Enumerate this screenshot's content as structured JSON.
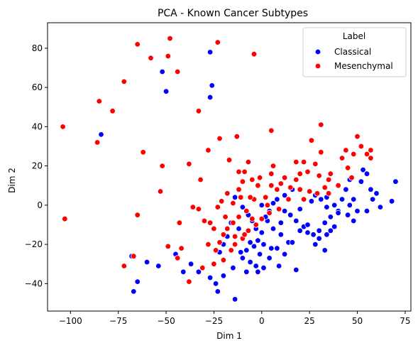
{
  "chart_data": {
    "type": "scatter",
    "title": "PCA - Known Cancer Subtypes",
    "xlabel": "Dim 1",
    "ylabel": "Dim 2",
    "xlim": [
      -112,
      78
    ],
    "ylim": [
      -54,
      93
    ],
    "xticks": [
      -100,
      -75,
      -50,
      -25,
      0,
      25,
      50,
      75
    ],
    "yticks": [
      -40,
      -20,
      0,
      20,
      40,
      60,
      80
    ],
    "grid": false,
    "legend": {
      "title": "Label",
      "placement": "top-right"
    },
    "series": [
      {
        "name": "Classical",
        "color": "#0000ff",
        "points": [
          [
            -84,
            36
          ],
          [
            -52,
            68
          ],
          [
            -50,
            58
          ],
          [
            -27,
            78
          ],
          [
            -26,
            61
          ],
          [
            -27,
            55
          ],
          [
            -68,
            -26
          ],
          [
            -67,
            -44
          ],
          [
            -65,
            -39
          ],
          [
            -60,
            -29
          ],
          [
            -54,
            -31
          ],
          [
            -45,
            -25
          ],
          [
            -41,
            -34
          ],
          [
            -37,
            -30
          ],
          [
            -33,
            -34
          ],
          [
            -27,
            -37
          ],
          [
            -24,
            -40
          ],
          [
            -23,
            -44
          ],
          [
            -20,
            -36
          ],
          [
            -15,
            -32
          ],
          [
            -14,
            -48
          ],
          [
            -18,
            -16
          ],
          [
            -12,
            -12
          ],
          [
            -10,
            -27
          ],
          [
            -6,
            -29
          ],
          [
            -3,
            -31
          ],
          [
            1,
            -32
          ],
          [
            -2,
            -34
          ],
          [
            -8,
            -34
          ],
          [
            5,
            -22
          ],
          [
            8,
            -22
          ],
          [
            10,
            -15
          ],
          [
            14,
            -19
          ],
          [
            9,
            -31
          ],
          [
            18,
            -33
          ],
          [
            20,
            -13
          ],
          [
            22,
            -11
          ],
          [
            24,
            -10
          ],
          [
            27,
            -15
          ],
          [
            30,
            -13
          ],
          [
            33,
            -9
          ],
          [
            34,
            -15
          ],
          [
            36,
            -13
          ],
          [
            33,
            -23
          ],
          [
            28,
            -20
          ],
          [
            34,
            -1
          ],
          [
            34,
            4
          ],
          [
            38,
            0
          ],
          [
            40,
            -3
          ],
          [
            42,
            3
          ],
          [
            44,
            8
          ],
          [
            46,
            13
          ],
          [
            48,
            3
          ],
          [
            46,
            0
          ],
          [
            45,
            -5
          ],
          [
            50,
            -3
          ],
          [
            52,
            12
          ],
          [
            53,
            18
          ],
          [
            55,
            16
          ],
          [
            57,
            8
          ],
          [
            58,
            3
          ],
          [
            60,
            6
          ],
          [
            62,
            -1
          ],
          [
            68,
            2
          ],
          [
            70,
            12
          ],
          [
            55,
            -3
          ],
          [
            48,
            -8
          ],
          [
            40,
            -4
          ],
          [
            36,
            -6
          ],
          [
            31,
            3
          ],
          [
            28,
            5
          ],
          [
            26,
            2
          ],
          [
            18,
            -8
          ],
          [
            15,
            -5
          ],
          [
            12,
            -3
          ],
          [
            10,
            -9
          ],
          [
            6,
            -12
          ],
          [
            3,
            -8
          ],
          [
            0,
            -14
          ],
          [
            -2,
            -18
          ],
          [
            -4,
            -21
          ],
          [
            -6,
            -19
          ],
          [
            -8,
            -23
          ],
          [
            -11,
            -24
          ],
          [
            -3,
            -12
          ],
          [
            2,
            -6
          ],
          [
            4,
            -3
          ],
          [
            6,
            1
          ],
          [
            8,
            3
          ],
          [
            12,
            5
          ],
          [
            16,
            8
          ],
          [
            20,
            -2
          ],
          [
            0,
            0
          ],
          [
            -5,
            -8
          ],
          [
            -7,
            -5
          ],
          [
            -10,
            -1
          ],
          [
            -14,
            4
          ],
          [
            -16,
            -9
          ],
          [
            -20,
            -20
          ],
          [
            -22,
            -24
          ],
          [
            4,
            -27
          ],
          [
            12,
            -25
          ],
          [
            16,
            -19
          ],
          [
            24,
            -14
          ],
          [
            30,
            -17
          ],
          [
            38,
            -11
          ],
          [
            1,
            -20
          ],
          [
            -1,
            -25
          ]
        ]
      },
      {
        "name": "Mesenchymal",
        "color": "#ff0000",
        "points": [
          [
            -104,
            40
          ],
          [
            -103,
            -7
          ],
          [
            -85,
            53
          ],
          [
            -86,
            32
          ],
          [
            -78,
            48
          ],
          [
            -72,
            63
          ],
          [
            -65,
            82
          ],
          [
            -58,
            75
          ],
          [
            -48,
            85
          ],
          [
            -49,
            76
          ],
          [
            -44,
            68
          ],
          [
            -23,
            83
          ],
          [
            -4,
            77
          ],
          [
            -62,
            27
          ],
          [
            -52,
            20
          ],
          [
            -53,
            7
          ],
          [
            -65,
            -5
          ],
          [
            -72,
            -31
          ],
          [
            -67,
            -26
          ],
          [
            -49,
            -21
          ],
          [
            -44,
            -27
          ],
          [
            -38,
            -39
          ],
          [
            -42,
            -22
          ],
          [
            -43,
            -9
          ],
          [
            -38,
            21
          ],
          [
            -33,
            48
          ],
          [
            -32,
            13
          ],
          [
            -28,
            28
          ],
          [
            -22,
            34
          ],
          [
            -13,
            35
          ],
          [
            -17,
            23
          ],
          [
            -12,
            17
          ],
          [
            -10,
            12
          ],
          [
            -7,
            22
          ],
          [
            -9,
            17
          ],
          [
            -5,
            13
          ],
          [
            -2,
            10
          ],
          [
            -1,
            14
          ],
          [
            2,
            4
          ],
          [
            -4,
            3
          ],
          [
            -8,
            -3
          ],
          [
            -12,
            -6
          ],
          [
            -15,
            -9
          ],
          [
            -18,
            -12
          ],
          [
            -20,
            -15
          ],
          [
            -22,
            -19
          ],
          [
            -24,
            -23
          ],
          [
            -28,
            -20
          ],
          [
            -25,
            -12
          ],
          [
            -27,
            -9
          ],
          [
            -23,
            -1
          ],
          [
            -21,
            2
          ],
          [
            -18,
            6
          ],
          [
            -15,
            1
          ],
          [
            -11,
            4
          ],
          [
            -6,
            4
          ],
          [
            3,
            0
          ],
          [
            5,
            10
          ],
          [
            5,
            16
          ],
          [
            6,
            20
          ],
          [
            5,
            38
          ],
          [
            8,
            8
          ],
          [
            10,
            11
          ],
          [
            12,
            14
          ],
          [
            15,
            9
          ],
          [
            18,
            13
          ],
          [
            18,
            22
          ],
          [
            20,
            16
          ],
          [
            22,
            3
          ],
          [
            22,
            22
          ],
          [
            24,
            17
          ],
          [
            26,
            33
          ],
          [
            28,
            21
          ],
          [
            30,
            15
          ],
          [
            31,
            27
          ],
          [
            31,
            41
          ],
          [
            33,
            9
          ],
          [
            35,
            13
          ],
          [
            36,
            16
          ],
          [
            40,
            10
          ],
          [
            42,
            24
          ],
          [
            44,
            28
          ],
          [
            45,
            19
          ],
          [
            47,
            14
          ],
          [
            48,
            26
          ],
          [
            50,
            35
          ],
          [
            52,
            30
          ],
          [
            55,
            26
          ],
          [
            57,
            28
          ],
          [
            57,
            24
          ],
          [
            35,
            6
          ],
          [
            29,
            6
          ],
          [
            25,
            7
          ],
          [
            20,
            8
          ],
          [
            14,
            3
          ],
          [
            9,
            -2
          ],
          [
            4,
            -4
          ],
          [
            0,
            -7
          ],
          [
            -3,
            -10
          ],
          [
            -7,
            -13
          ],
          [
            -10,
            -17
          ],
          [
            -14,
            -20
          ],
          [
            -16,
            -23
          ],
          [
            -20,
            -28
          ],
          [
            -25,
            -30
          ],
          [
            -30,
            -8
          ],
          [
            -33,
            -2
          ],
          [
            -36,
            -1
          ],
          [
            -31,
            -32
          ],
          [
            -9,
            -15
          ],
          [
            -5,
            -7
          ],
          [
            -14,
            -16
          ],
          [
            -19,
            -6
          ],
          [
            -12,
            8
          ]
        ]
      }
    ]
  }
}
